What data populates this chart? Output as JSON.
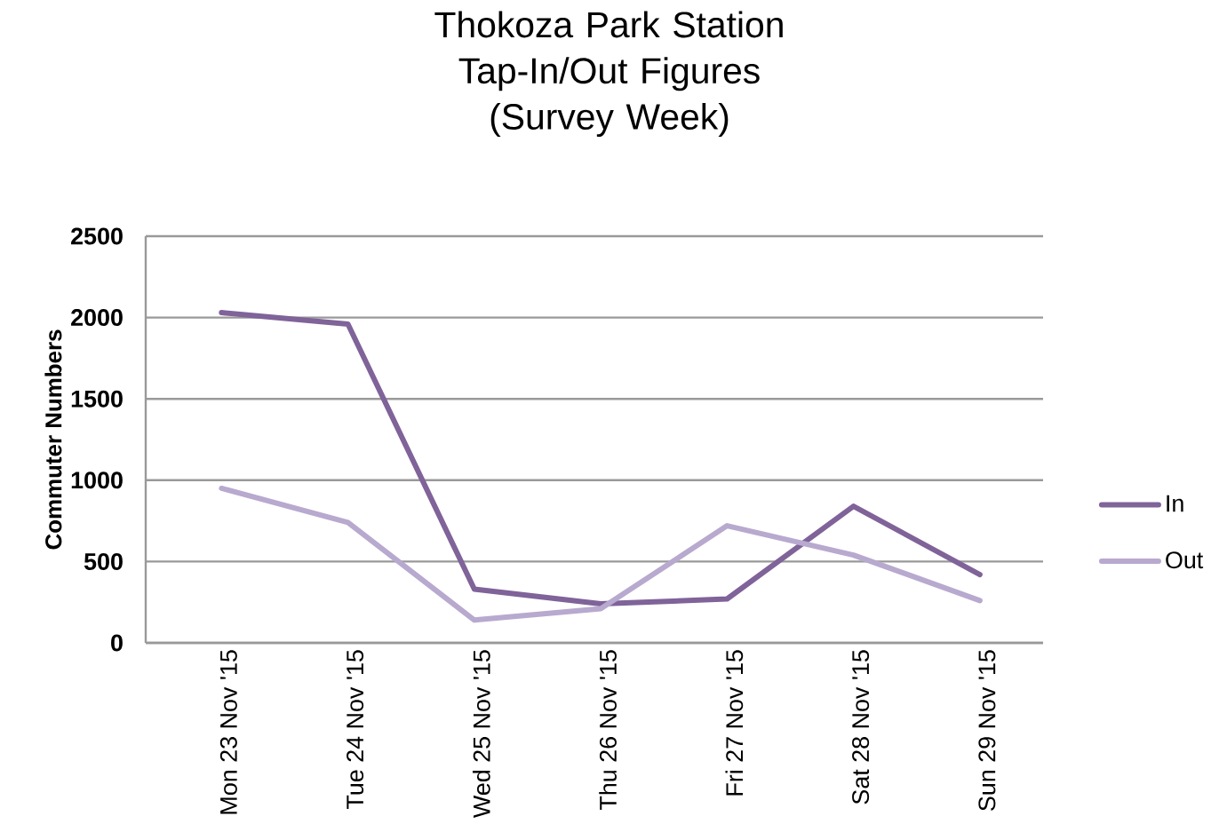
{
  "chart_data": {
    "type": "line",
    "title": "Thokoza Park Station Tap-In/Out Figures",
    "subtitle": "(Survey Week)",
    "ylabel": "Commuter Numbers",
    "categories": [
      "Mon 23 Nov '15",
      "Tue 24 Nov '15",
      "Wed 25 Nov '15",
      "Thu 26 Nov '15",
      "Fri 27 Nov '15",
      "Sat 28 Nov '15",
      "Sun 29 Nov '15"
    ],
    "series": [
      {
        "name": "In",
        "color": "#7f6399",
        "values": [
          2030,
          1960,
          330,
          240,
          270,
          840,
          420
        ]
      },
      {
        "name": "Out",
        "color": "#b8a9cf",
        "values": [
          950,
          740,
          140,
          210,
          720,
          540,
          260
        ]
      }
    ],
    "ylim": [
      0,
      2500
    ],
    "yticks": [
      0,
      500,
      1000,
      1500,
      2000,
      2500
    ],
    "grid": "y",
    "legend": "right",
    "marker": "none",
    "line_style": "solid"
  }
}
